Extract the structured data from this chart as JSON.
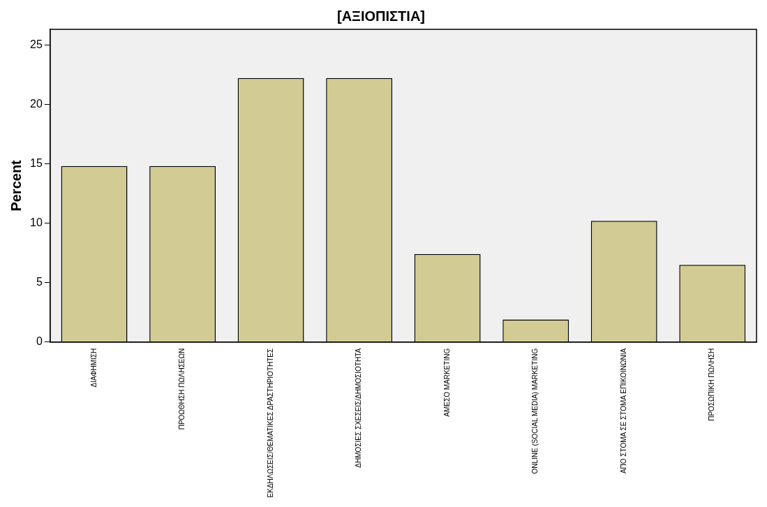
{
  "chart_data": {
    "type": "bar",
    "title": "[ΑΞΙΟΠΙΣΤΙΑ]",
    "ylabel": "Percent",
    "categories": [
      "ΔΙΑΦΗΜΙΣΗ",
      "ΠΡΟΩΘΗΣΗ ΠΩΛΗΣΕΩΝ",
      "ΕΚΔΗΛΩΣΕΙΣ/ΘΕΜΑΤΙΚΕΣ ΔΡΑΣΤΗΡΙΟΤΗΤΕΣ",
      "ΔΗΜΟΣΙΕΣ ΣΧΕΣΕΙΣ/ΔΗΜΟΣΙΟΤΗΤΑ",
      "ΑΜΕΣΟ MARKETING",
      "ONLINE (SOCIAL MEDIA) MARKETING",
      "ΑΠΟ ΣΤΟΜΑ ΣΕ ΣΤΟΜΑ ΕΠΙΚΟΙΝΩΝΙΑ",
      "ΠΡΟΣΩΠΙΚΗ ΠΩΛΗΣΗ"
    ],
    "values": [
      14.8,
      14.8,
      22.2,
      22.2,
      7.4,
      1.9,
      10.2,
      6.5
    ],
    "color": "#d2cc94",
    "ylim": [
      0,
      26.3
    ],
    "yticks": [
      0,
      5,
      10,
      15,
      20,
      25
    ],
    "grid": false,
    "legend": false
  }
}
